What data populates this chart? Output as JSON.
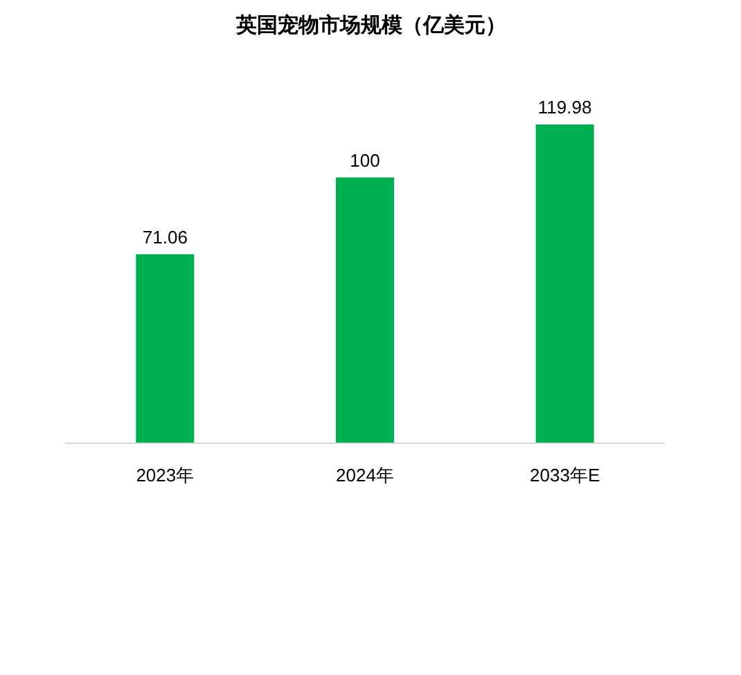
{
  "chart_data": {
    "type": "bar",
    "title": "英国宠物市场规模（亿美元）",
    "categories": [
      "2023年",
      "2024年",
      "2033年E"
    ],
    "values": [
      71.06,
      100,
      119.98
    ],
    "color": "#00b050",
    "data_labels": true
  }
}
